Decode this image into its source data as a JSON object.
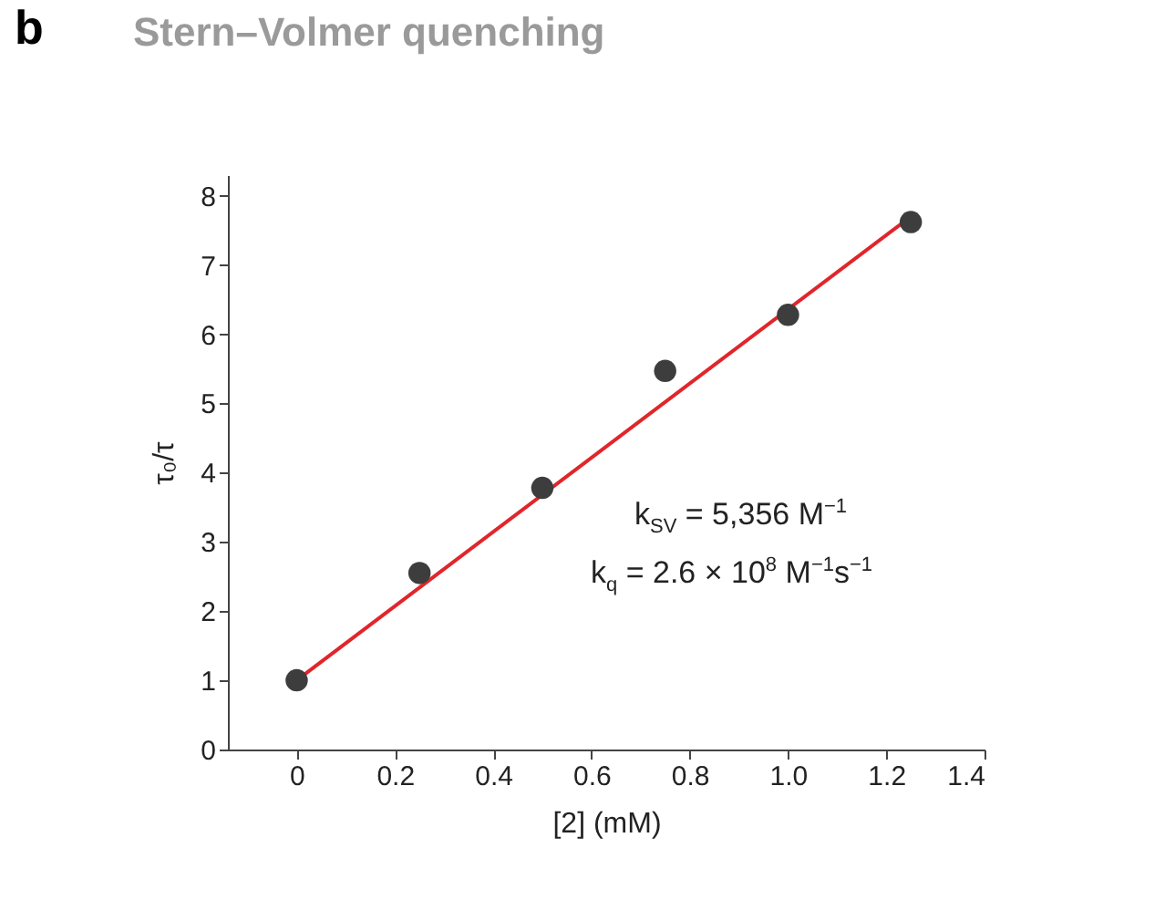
{
  "chart_data": {
    "type": "scatter",
    "title": "Stern–Volmer quenching",
    "xlabel": "[2] (mM)",
    "ylabel": "τ₀/τ",
    "annotations": [
      "b",
      "k$_{SV}$ = 5,356 M$^{−1}$",
      "k$_{q}$ = 2.6 × 10$^{8}$ M$^{−1}$s$^{−1}$"
    ],
    "x": [
      0,
      0.25,
      0.5,
      0.75,
      1.0,
      1.25
    ],
    "series": [
      {
        "color": "#3d3d3d",
        "marker": "circle",
        "values": [
          1.0,
          2.55,
          3.78,
          5.47,
          6.28,
          7.62
        ]
      },
      {
        "type": "line",
        "color": "#e0262b",
        "x": [
          0,
          1.25
        ],
        "values": [
          1.0,
          7.7
        ]
      }
    ],
    "xlim": [
      -0.14,
      1.4
    ],
    "xticks": [
      0,
      {
        "value": 0.2,
        "label": "0.2"
      },
      {
        "value": 0.4,
        "label": "0.4"
      },
      {
        "value": 0.6,
        "label": "0.6"
      },
      {
        "value": 0.8,
        "label": "0.8"
      },
      {
        "value": 1.0,
        "label": "1.0"
      },
      {
        "value": 1.2,
        "label": "1.2"
      },
      {
        "value": 1.4,
        "label": "1.4"
      }
    ],
    "ylim": [
      0,
      8.3
    ],
    "yticks": [
      0,
      1,
      2,
      3,
      4,
      5,
      6,
      7,
      8
    ],
    "grid": false,
    "line_style": "solid"
  }
}
